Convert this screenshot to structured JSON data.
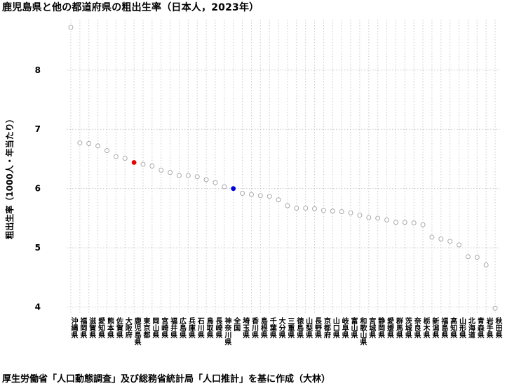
{
  "title": "鹿児島県と他の都道府県の粗出生率（日本人，2023年）",
  "caption": "厚生労働省「人口動態調査」及び総務省統計局「人口推計」を基に作成（大林）",
  "chart_data": {
    "type": "scatter",
    "title": "鹿児島県と他の都道府県の粗出生率（日本人，2023年）",
    "xlabel": "",
    "ylabel": "粗出生率（1000人・年当たり）",
    "ylim": [
      3.9,
      8.85
    ],
    "yticks": [
      4,
      5,
      6,
      7,
      8
    ],
    "grid": true,
    "categories": [
      "沖縄県",
      "福岡県",
      "滋賀県",
      "愛知県",
      "熊本県",
      "佐賀県",
      "大阪府",
      "鹿児島県",
      "東京都",
      "岡山県",
      "宮崎県",
      "福井県",
      "広島県",
      "兵庫県",
      "石川県",
      "鳥取県",
      "長崎県",
      "神奈川県",
      "全国",
      "埼玉県",
      "香川県",
      "島根県",
      "千葉県",
      "大分県",
      "三重県",
      "徳島県",
      "山梨県",
      "長野県",
      "京都府",
      "山口県",
      "岐阜県",
      "富山県",
      "和歌山県",
      "宮城県",
      "静岡県",
      "愛媛県",
      "群馬県",
      "茨城県",
      "奈良県",
      "栃木県",
      "新潟県",
      "福島県",
      "高知県",
      "山形県",
      "北海道",
      "青森県",
      "岩手県",
      "秋田県"
    ],
    "values": [
      8.72,
      6.77,
      6.76,
      6.72,
      6.64,
      6.54,
      6.51,
      6.44,
      6.41,
      6.38,
      6.31,
      6.27,
      6.22,
      6.22,
      6.2,
      6.15,
      6.1,
      6.03,
      6.0,
      5.92,
      5.9,
      5.88,
      5.87,
      5.81,
      5.71,
      5.67,
      5.67,
      5.66,
      5.63,
      5.62,
      5.61,
      5.59,
      5.55,
      5.51,
      5.5,
      5.47,
      5.43,
      5.43,
      5.42,
      5.39,
      5.18,
      5.15,
      5.11,
      5.05,
      4.85,
      4.84,
      4.71,
      3.98
    ],
    "highlights": [
      {
        "name": "鹿児島県",
        "color": "#e60000"
      },
      {
        "name": "全国",
        "color": "#0000dd"
      }
    ],
    "default_point_color": "#a0a0a0",
    "grid_color": "#c8c8c8"
  }
}
